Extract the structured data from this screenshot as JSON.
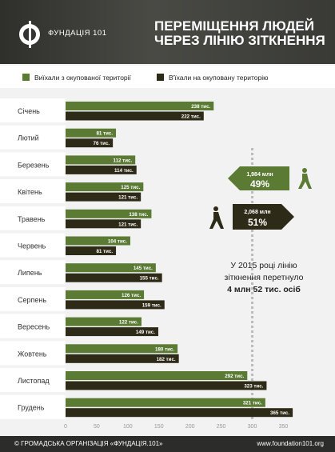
{
  "header": {
    "brand": "ФУНДАЦІЯ 101",
    "title_line1": "ПЕРЕМІЩЕННЯ ЛЮДЕЙ",
    "title_line2": "ЧЕРЕЗ ЛІНІЮ ЗІТКНЕННЯ"
  },
  "legend": {
    "item1": "Виїхали з окупованої території",
    "item2": "В'їхали на окуповану територію"
  },
  "colors": {
    "green": "#5b7a34",
    "dark": "#2e2a18",
    "axis": "#999999"
  },
  "chart_data": {
    "type": "bar",
    "orientation": "horizontal",
    "categories": [
      "Січень",
      "Лютий",
      "Березень",
      "Квітень",
      "Травень",
      "Червень",
      "Липень",
      "Серпень",
      "Вересень",
      "Жовтень",
      "Листопад",
      "Грудень"
    ],
    "series": [
      {
        "name": "Виїхали з окупованої території",
        "values": [
          238,
          81,
          112,
          125,
          138,
          104,
          145,
          126,
          122,
          180,
          292,
          321
        ],
        "labels": [
          "238 тис.",
          "81 тис.",
          "112 тис.",
          "125 тис.",
          "138 тис.",
          "104 тис.",
          "145 тис.",
          "126 тис.",
          "122 тис.",
          "180 тис.",
          "292 тис.",
          "321 тис."
        ]
      },
      {
        "name": "В'їхали на окуповану територію",
        "values": [
          222,
          76,
          114,
          121,
          121,
          81,
          155,
          159,
          149,
          182,
          323,
          365
        ],
        "labels": [
          "222 тис.",
          "76 тис.",
          "114 тис.",
          "121 тис.",
          "121 тис.",
          "81 тис.",
          "155 тис.",
          "159 тис.",
          "149 тис.",
          "182 тис.",
          "323 тис.",
          "365 тис."
        ]
      }
    ],
    "xlim": [
      0,
      370
    ],
    "xticks": [
      "0",
      "50",
      "100",
      "150",
      "200",
      "250",
      "300",
      "350"
    ],
    "reference_line": 300
  },
  "callouts": {
    "left_value": "1,984 млн",
    "left_pct": "49%",
    "in_value": "2,068 млн",
    "in_pct": "51%",
    "summary1": "У 2015 році лінію",
    "summary2": "зіткнення перетнуло",
    "summary3": "4 млн 52 тис. осіб"
  },
  "footer": {
    "left": "© ГРОМАДСЬКА ОРГАНІЗАЦІЯ «ФУНДАЦІЯ.101»",
    "right": "www.foundation101.org"
  }
}
